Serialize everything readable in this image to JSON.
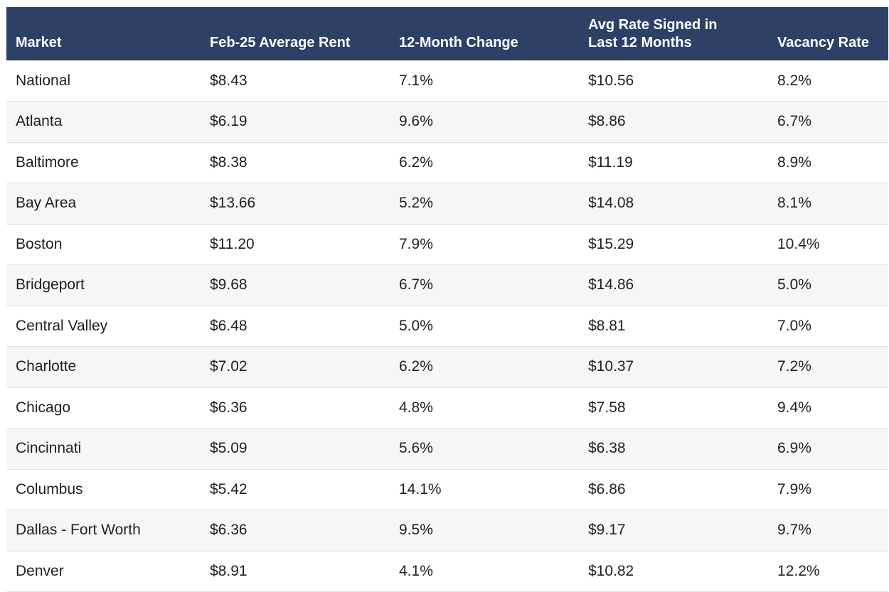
{
  "table": {
    "headers": [
      "Market",
      "Feb-25 Average Rent",
      "12-Month Change",
      "Avg Rate Signed in Last 12 Months",
      "Vacancy Rate"
    ],
    "rows": [
      [
        "National",
        "$8.43",
        "7.1%",
        "$10.56",
        "8.2%"
      ],
      [
        "Atlanta",
        "$6.19",
        "9.6%",
        "$8.86",
        "6.7%"
      ],
      [
        "Baltimore",
        "$8.38",
        "6.2%",
        "$11.19",
        "8.9%"
      ],
      [
        "Bay Area",
        "$13.66",
        "5.2%",
        "$14.08",
        "8.1%"
      ],
      [
        "Boston",
        "$11.20",
        "7.9%",
        "$15.29",
        "10.4%"
      ],
      [
        "Bridgeport",
        "$9.68",
        "6.7%",
        "$14.86",
        "5.0%"
      ],
      [
        "Central Valley",
        "$6.48",
        "5.0%",
        "$8.81",
        "7.0%"
      ],
      [
        "Charlotte",
        "$7.02",
        "6.2%",
        "$10.37",
        "7.2%"
      ],
      [
        "Chicago",
        "$6.36",
        "4.8%",
        "$7.58",
        "9.4%"
      ],
      [
        "Cincinnati",
        "$5.09",
        "5.6%",
        "$6.38",
        "6.9%"
      ],
      [
        "Columbus",
        "$5.42",
        "14.1%",
        "$6.86",
        "7.9%"
      ],
      [
        "Dallas - Fort Worth",
        "$6.36",
        "9.5%",
        "$9.17",
        "9.7%"
      ],
      [
        "Denver",
        "$8.91",
        "4.1%",
        "$10.82",
        "12.2%"
      ]
    ]
  },
  "colors": {
    "header_bg": "#2d4066",
    "header_text": "#ffffff",
    "row_alt_bg": "#f6f6f6"
  }
}
